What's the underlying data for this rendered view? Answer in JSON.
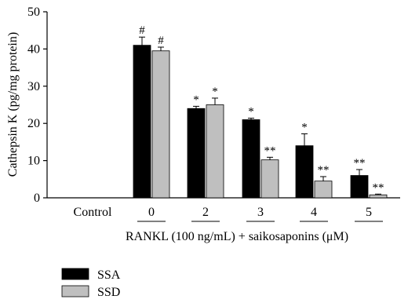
{
  "chart_data": {
    "type": "bar",
    "ylabel": "Cathepsin K (pg/mg protein)",
    "xlabel": "RANKL (100 ng/mL) + saikosaponins (μM)",
    "ylim": [
      0,
      50
    ],
    "yticks": [
      0,
      10,
      20,
      30,
      40,
      50
    ],
    "categories": [
      "Control",
      "0",
      "2",
      "3",
      "4",
      "5"
    ],
    "series": [
      {
        "name": "SSA",
        "color": "#000000",
        "values": [
          0,
          41,
          24,
          21,
          14,
          6
        ],
        "errors": [
          0,
          2.2,
          0.6,
          0.4,
          3.2,
          1.6
        ],
        "marks": [
          "",
          "#",
          "*",
          "*",
          "*",
          "**"
        ]
      },
      {
        "name": "SSD",
        "color": "#bfbfbf",
        "values": [
          0,
          39.5,
          25,
          10.2,
          4.5,
          0.8
        ],
        "errors": [
          0,
          1.0,
          1.8,
          0.7,
          1.2,
          0.2
        ],
        "marks": [
          "",
          "#",
          "*",
          "**",
          "**",
          "**"
        ]
      }
    ],
    "legend_position": "bottom-left",
    "grid": false
  }
}
